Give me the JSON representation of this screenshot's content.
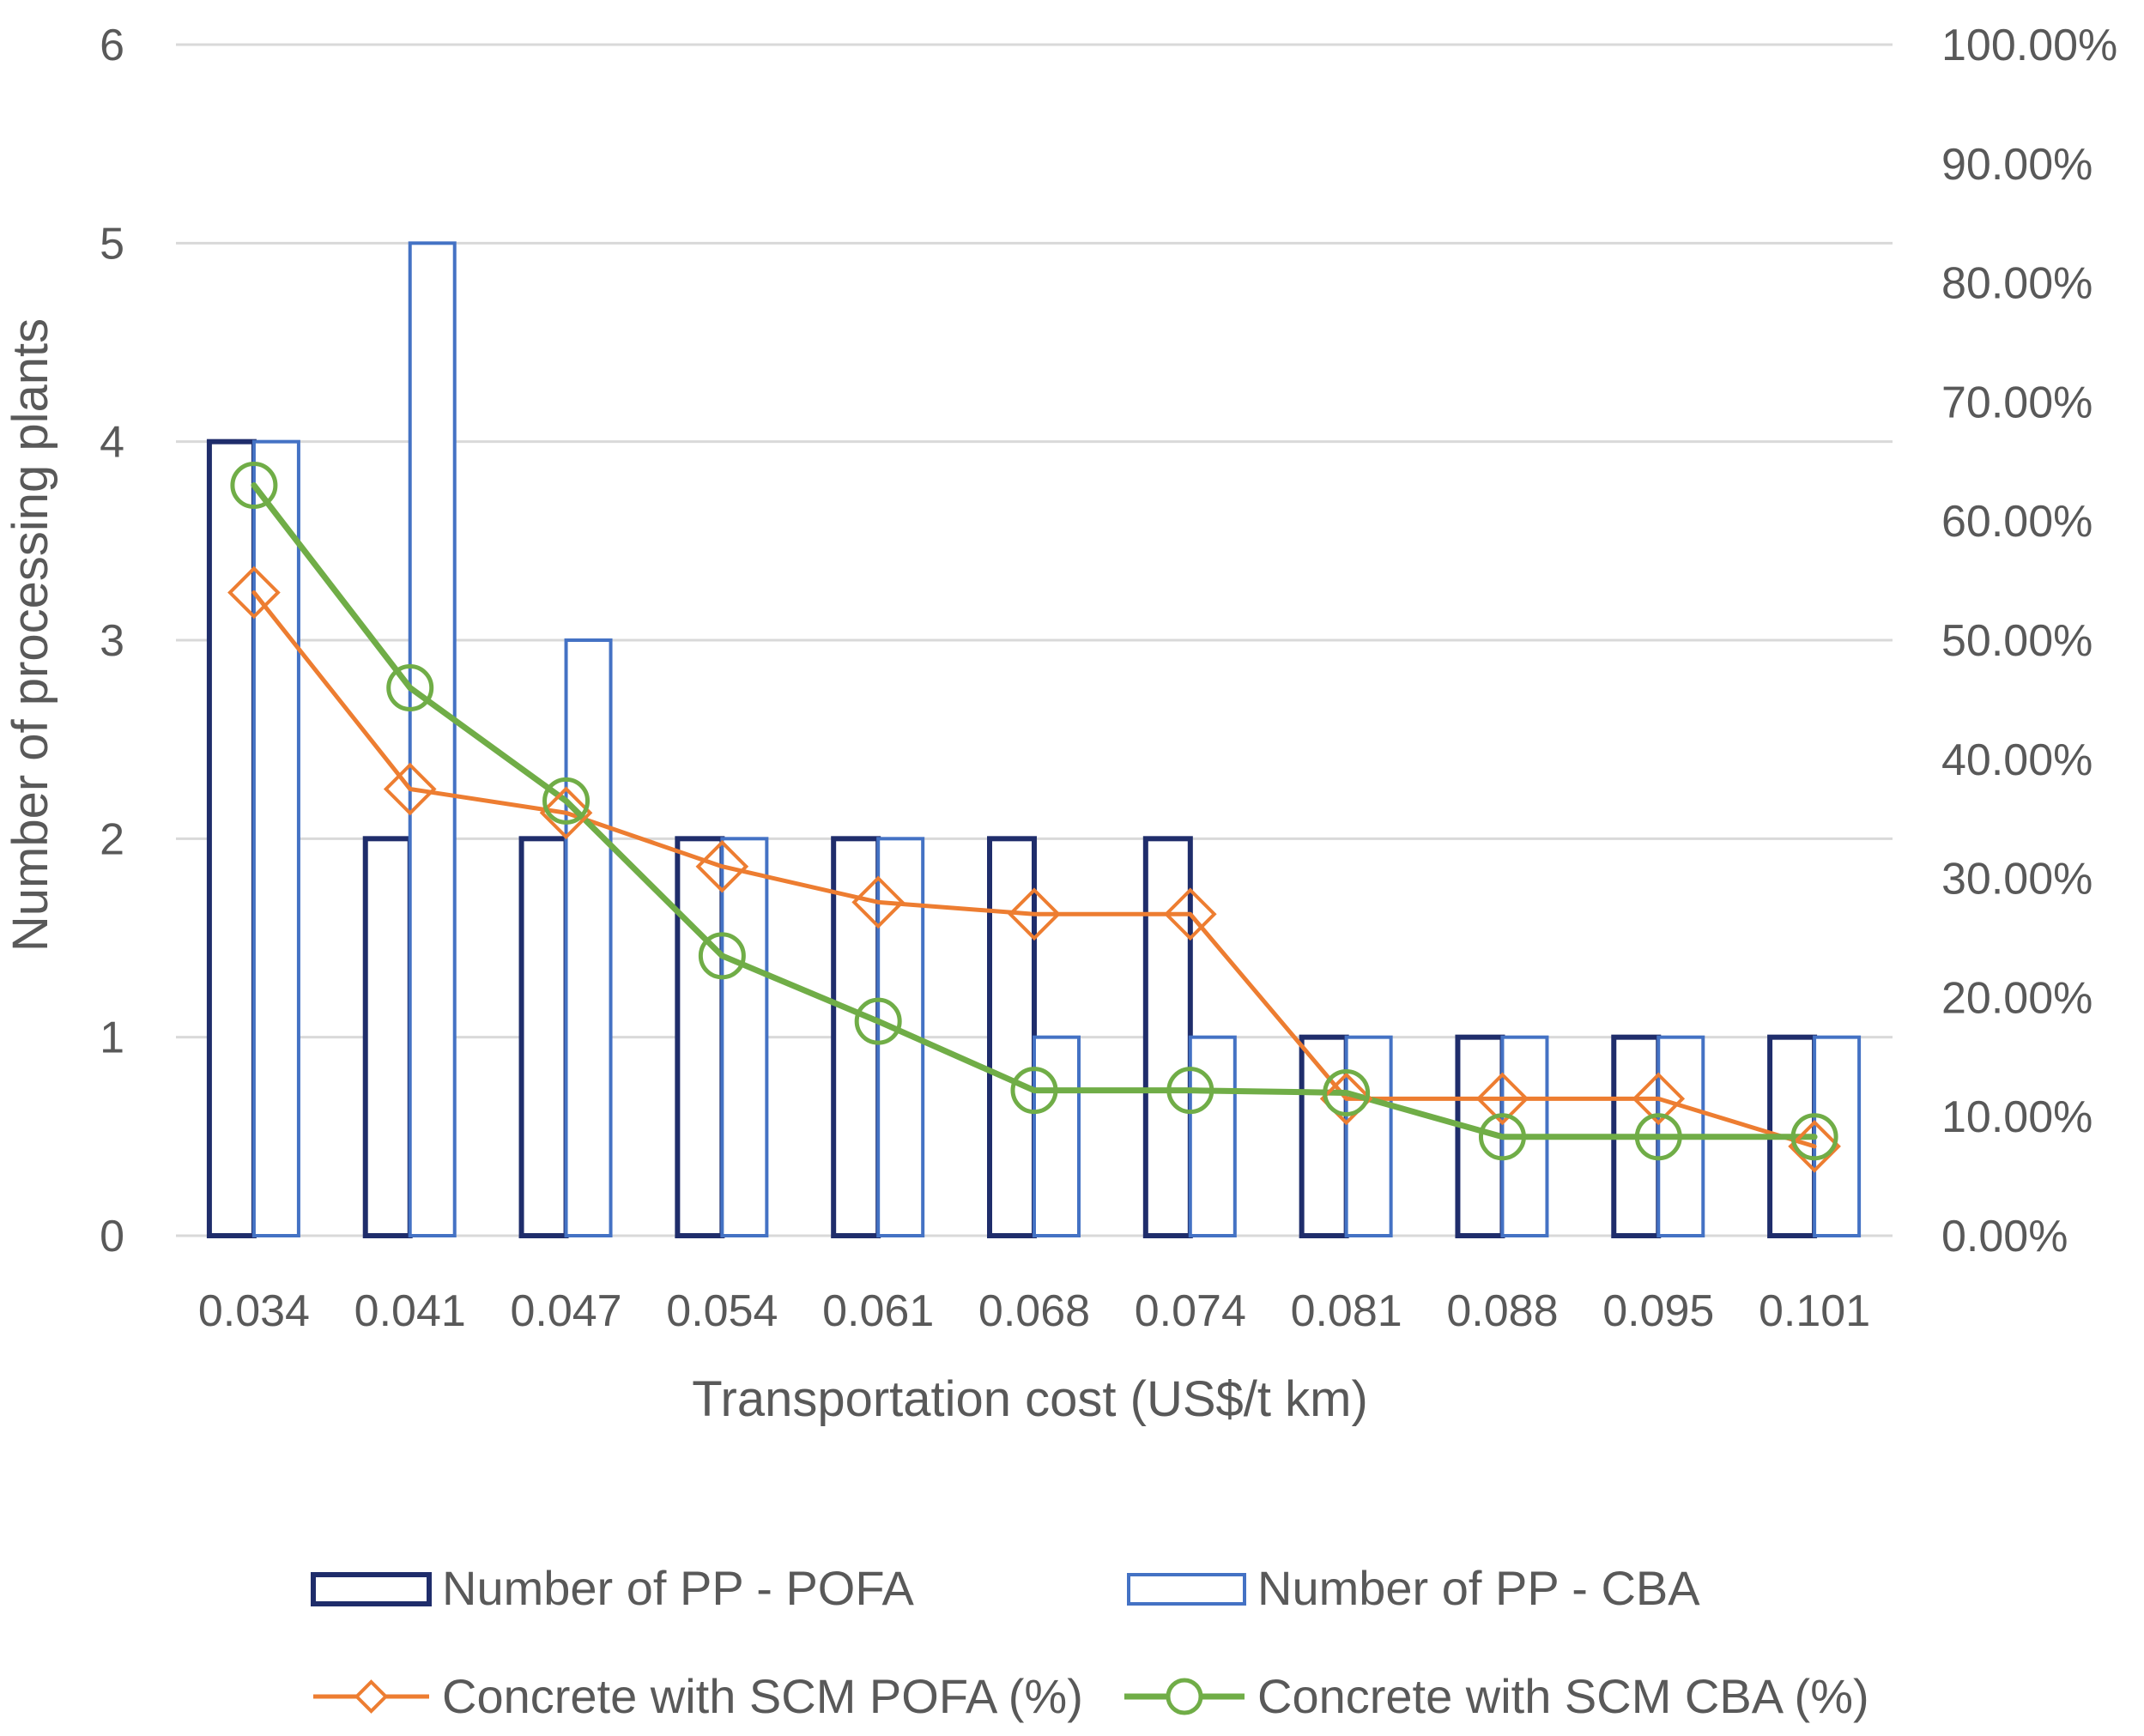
{
  "chart_data": {
    "type": "bar",
    "categories": [
      "0.034",
      "0.041",
      "0.047",
      "0.054",
      "0.061",
      "0.068",
      "0.074",
      "0.081",
      "0.088",
      "0.095",
      "0.101"
    ],
    "xlabel": "Transportation cost (US$/t  km)",
    "ylabel": "Number  of processing plants",
    "ylim": [
      0,
      6
    ],
    "y_ticks": [
      "0",
      "1",
      "2",
      "3",
      "4",
      "5",
      "6"
    ],
    "y2lim": [
      0,
      100
    ],
    "y2_ticks": [
      "0.00%",
      "10.00%",
      "20.00%",
      "30.00%",
      "40.00%",
      "50.00%",
      "60.00%",
      "70.00%",
      "80.00%",
      "90.00%",
      "100.00%"
    ],
    "grid": true,
    "legend_position": "bottom",
    "series": [
      {
        "name": "Number of PP -  POFA",
        "kind": "bar",
        "axis": "left",
        "color": "#1f2d6b",
        "values": [
          4,
          2,
          2,
          2,
          2,
          2,
          2,
          1,
          1,
          1,
          1
        ]
      },
      {
        "name": "Number of PP -  CBA",
        "kind": "bar",
        "axis": "left",
        "color": "#4472c4",
        "values": [
          4,
          5,
          3,
          2,
          2,
          1,
          1,
          1,
          1,
          1,
          1
        ]
      },
      {
        "name": "Concrete with SCM  POFA (%)",
        "kind": "line",
        "marker": "diamond",
        "axis": "right",
        "color": "#ed7d31",
        "values": [
          54,
          37.5,
          35.5,
          31,
          28,
          27,
          27,
          11.5,
          11.5,
          11.5,
          7.5
        ]
      },
      {
        "name": "Concrete with SCM  CBA (%)",
        "kind": "line",
        "marker": "circle",
        "axis": "right",
        "color": "#70ad47",
        "values": [
          63,
          46,
          36.5,
          23.5,
          18,
          12.2,
          12.2,
          12,
          8.3,
          8.3,
          8.3
        ]
      }
    ]
  }
}
